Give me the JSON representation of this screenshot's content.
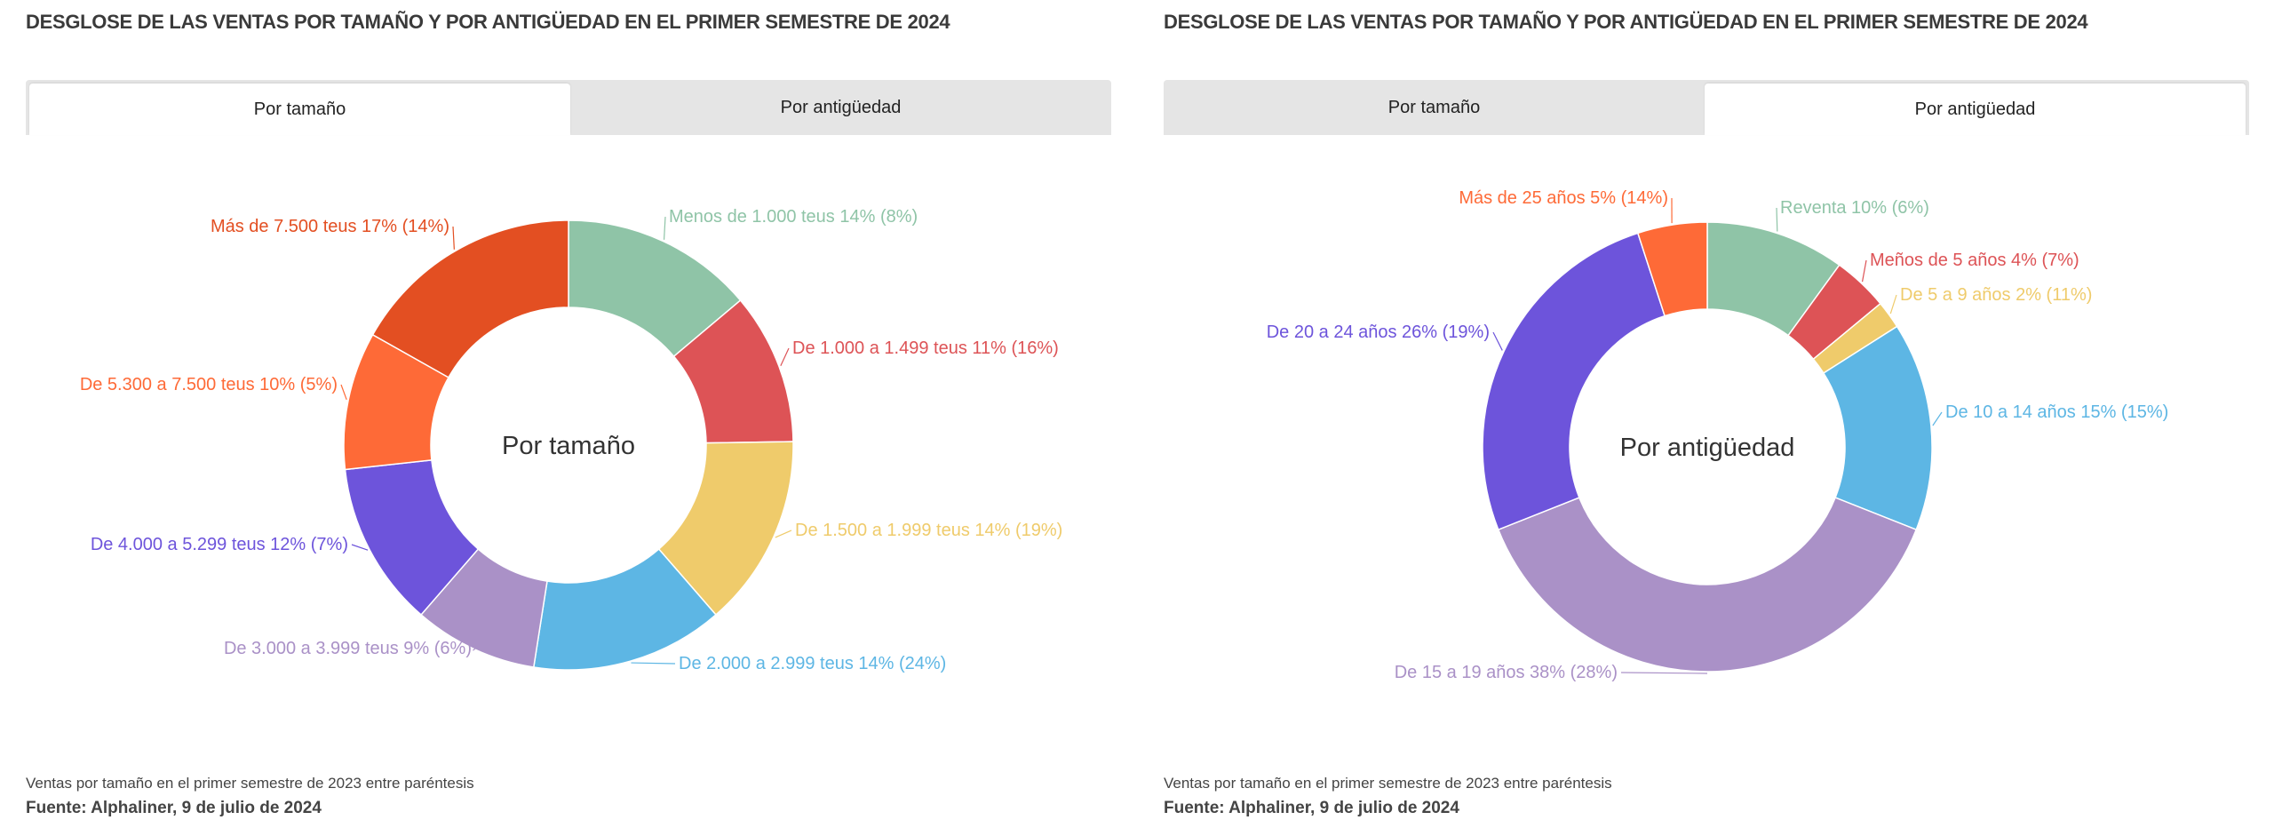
{
  "title": "DESGLOSE DE LAS VENTAS POR TAMAÑO Y POR ANTIGÜEDAD EN EL PRIMER SEMESTRE DE 2024",
  "tabs": [
    "Por tamaño",
    "Por antigüedad"
  ],
  "footer": {
    "note": "Ventas por tamaño en el primer semestre de 2023 entre paréntesis",
    "source": "Fuente: Alphaliner, 9 de julio de 2024"
  },
  "chart_data": [
    {
      "type": "pie",
      "variant": "donut",
      "title": "Por tamaño",
      "active_tab": "Por tamaño",
      "categories": [
        "Menos de 1.000 teus",
        "De 1.000 a 1.499 teus",
        "De 1.500 a 1.999 teus",
        "De 2.000 a 2.999 teus",
        "De 3.000 a 3.999 teus",
        "De 4.000 a 5.299 teus",
        "De 5.300 a 7.500 teus",
        "Más de 7.500 teus"
      ],
      "values": [
        14,
        11,
        14,
        14,
        9,
        12,
        10,
        17
      ],
      "values_2023": [
        8,
        16,
        19,
        24,
        6,
        7,
        5,
        14
      ],
      "labels": [
        "Menos de 1.000 teus 14% (8%)",
        "De 1.000 a 1.499 teus 11% (16%)",
        "De 1.500 a 1.999 teus 14% (19%)",
        "De 2.000 a 2.999 teus 14% (24%)",
        "De 3.000 a 3.999 teus 9% (6%)",
        "De 4.000 a 5.299 teus 12% (7%)",
        "De 5.300 a 7.500 teus 10% (5%)",
        "Más de 7.500 teus 17% (14%)"
      ],
      "colors": [
        "#8fc4a7",
        "#dd5356",
        "#efcb6b",
        "#5db6e4",
        "#aa91c7",
        "#6d54db",
        "#fe6a37",
        "#e34f22"
      ]
    },
    {
      "type": "pie",
      "variant": "donut",
      "title": "Por antigüedad",
      "active_tab": "Por antigüedad",
      "categories": [
        "Reventa",
        "Meños de 5 años",
        "De 5 a 9 años",
        "De 10 a 14 años",
        "De 15 a 19 años",
        "De 20 a 24 años",
        "Más de 25 años"
      ],
      "values": [
        10,
        4,
        2,
        15,
        38,
        26,
        5
      ],
      "values_2023": [
        6,
        7,
        11,
        15,
        28,
        19,
        14
      ],
      "labels": [
        "Reventa 10% (6%)",
        "Meños de 5 años 4% (7%)",
        "De 5 a 9 años 2% (11%)",
        "De 10 a 14 años 15% (15%)",
        "De 15 a 19 años 38% (28%)",
        "De 20 a 24 años 26% (19%)",
        "Más de 25 años 5% (14%)"
      ],
      "colors": [
        "#8fc4a7",
        "#dd5356",
        "#efcb6b",
        "#5db6e4",
        "#aa91c7",
        "#6d54db",
        "#fe6a37"
      ]
    }
  ]
}
